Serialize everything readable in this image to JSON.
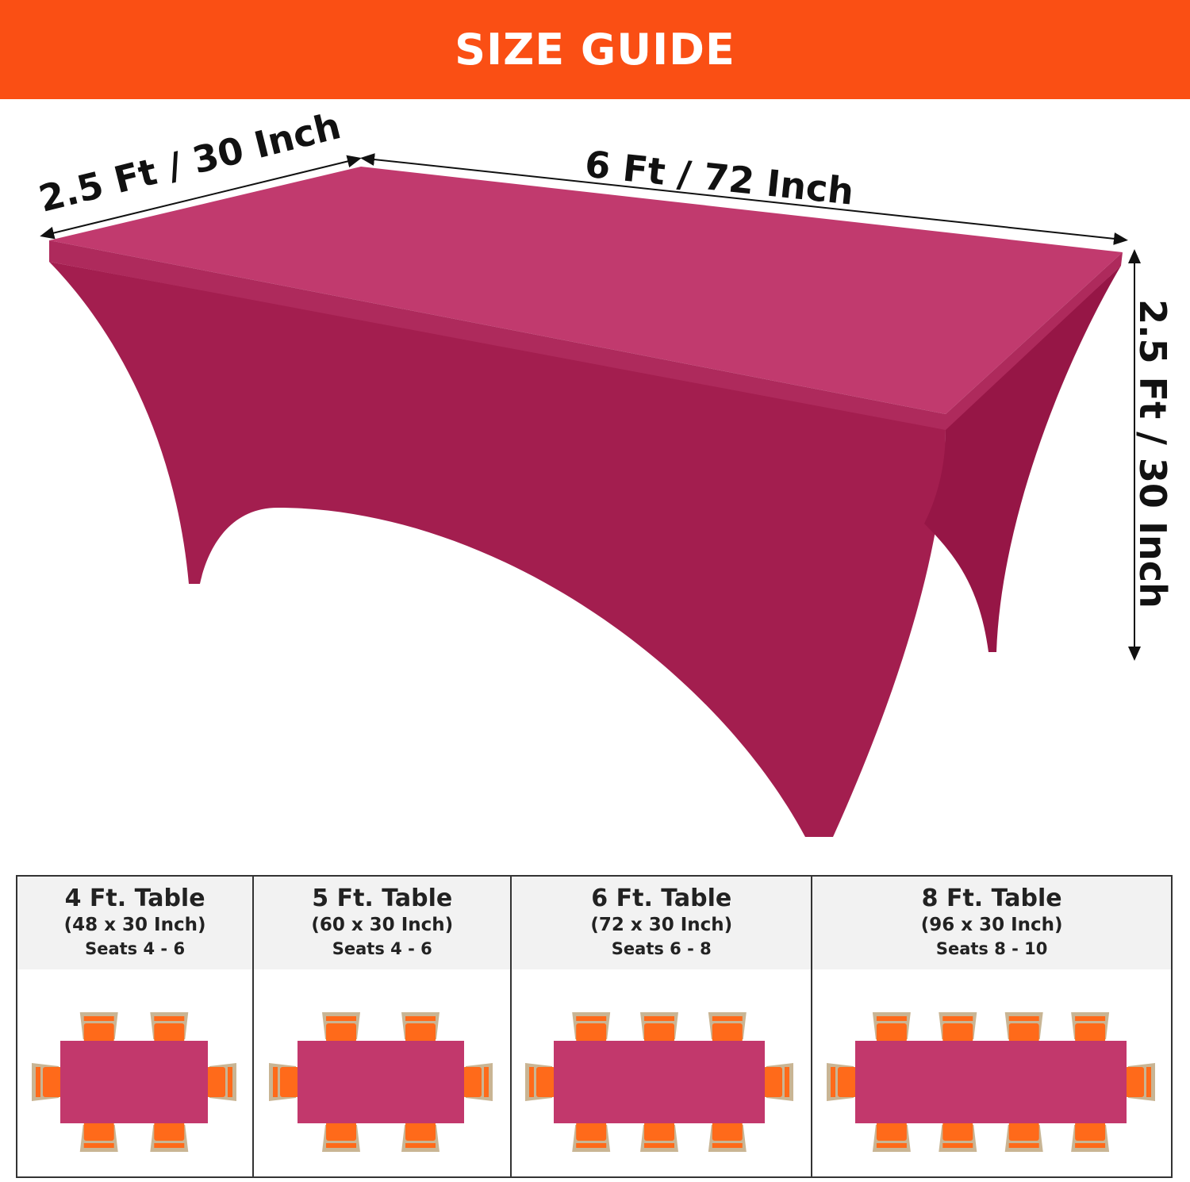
{
  "header": {
    "title": "SIZE GUIDE"
  },
  "colors": {
    "banner": "#FA4F14",
    "cover_top": "#C13A6E",
    "cover_front": "#A31E4F",
    "cover_side": "#961646",
    "chair_seat": "#FF6A1A",
    "chair_frame": "#C9B594",
    "table_diagram": "#C2386C"
  },
  "product": {
    "name": "stretch table cover",
    "icon": "tablecloth-image"
  },
  "dimensions": {
    "width": "2.5 Ft / 30 Inch",
    "length": "6 Ft / 72 Inch",
    "height": "2.5 Ft / 30 Inch"
  },
  "tables": [
    {
      "title": "4 Ft. Table",
      "size": "(48 x 30 Inch)",
      "seats": "Seats 4 - 6",
      "chairs_per_side": 2
    },
    {
      "title": "5 Ft. Table",
      "size": "(60 x 30 Inch)",
      "seats": "Seats 4 - 6",
      "chairs_per_side": 2
    },
    {
      "title": "6 Ft. Table",
      "size": "(72 x 30 Inch)",
      "seats": "Seats 6 - 8",
      "chairs_per_side": 3
    },
    {
      "title": "8 Ft. Table",
      "size": "(96 x 30 Inch)",
      "seats": "Seats 8 - 10",
      "chairs_per_side": 4
    }
  ]
}
